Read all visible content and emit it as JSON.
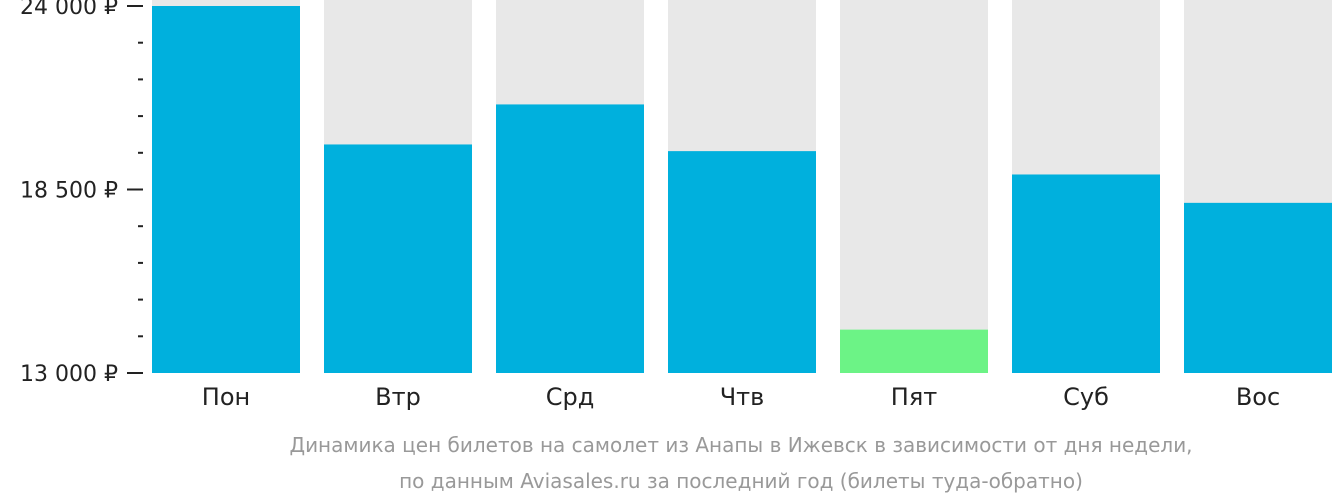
{
  "chart_data": {
    "type": "bar",
    "categories": [
      "Пон",
      "Втр",
      "Срд",
      "Чтв",
      "Пят",
      "Суб",
      "Вос"
    ],
    "values": [
      24000,
      19850,
      21050,
      19650,
      14300,
      18950,
      18100
    ],
    "ylim": [
      13000,
      24000
    ],
    "yticks": [
      {
        "value": 24000,
        "label": "24 000 ₽"
      },
      {
        "value": 18500,
        "label": "18 500 ₽"
      },
      {
        "value": 13000,
        "label": "13 000 ₽"
      }
    ],
    "minor_tick_step": 1100,
    "bar_color": "#00b0dd",
    "highlight_color": "#6cf386",
    "highlight_index": 4,
    "track_color": "#e8e8e8",
    "title": "",
    "caption": [
      "Динамика цен билетов на самолет из Анапы в Ижевск в зависимости от дня недели,",
      "по данным Aviasales.ru за последний год (билеты туда-обратно)"
    ]
  }
}
